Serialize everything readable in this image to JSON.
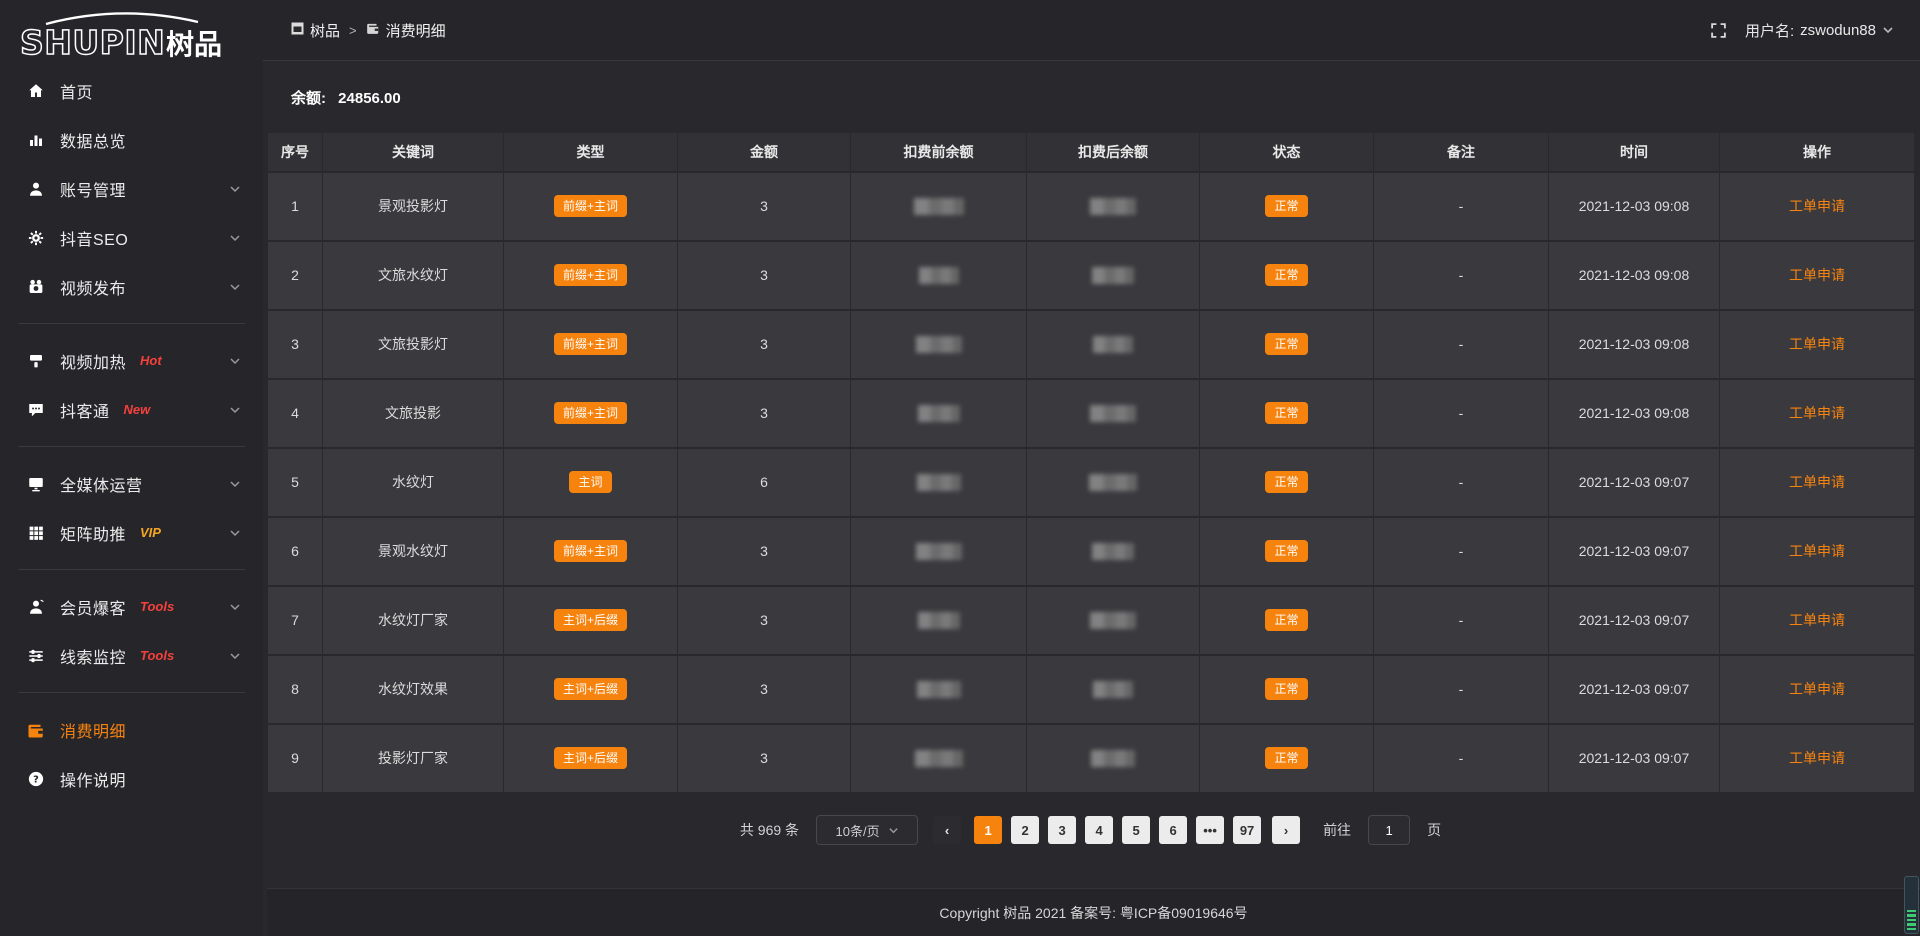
{
  "colors": {
    "accent": "#f7830f",
    "badge_red": "#f5403c",
    "badge_vip": "#f5a623",
    "link": "#f7830f"
  },
  "logo": {
    "text_en": "SHUPIN",
    "text_cn": "树品"
  },
  "header": {
    "breadcrumb": [
      {
        "label": "树品"
      },
      {
        "label": "消费明细"
      }
    ],
    "breadcrumb_separator": ">",
    "username_label": "用户名:",
    "username": "zswodun88"
  },
  "sidebar": {
    "items": [
      {
        "key": "home",
        "label": "首页",
        "icon": "home-icon"
      },
      {
        "key": "data-overview",
        "label": "数据总览",
        "icon": "bar-chart-icon"
      },
      {
        "key": "account-manage",
        "label": "账号管理",
        "icon": "user-icon",
        "chevron": true
      },
      {
        "key": "douyin-seo",
        "label": "抖音SEO",
        "icon": "gear-icon",
        "chevron": true
      },
      {
        "key": "video-publish",
        "label": "视频发布",
        "icon": "video-camera-icon",
        "chevron": true
      },
      {
        "divider": true
      },
      {
        "key": "video-heat",
        "label": "视频加热",
        "icon": "heat-brush-icon",
        "badge": "Hot",
        "badge_color": "red",
        "chevron": true
      },
      {
        "key": "doukertong",
        "label": "抖客通",
        "icon": "chat-bubble-icon",
        "badge": "New",
        "badge_color": "red",
        "chevron": true
      },
      {
        "divider": true
      },
      {
        "key": "media-operation",
        "label": "全媒体运营",
        "icon": "monitor-icon",
        "chevron": true
      },
      {
        "key": "matrix-boost",
        "label": "矩阵助推",
        "icon": "grid-icon",
        "badge": "VIP",
        "badge_color": "vip",
        "chevron": true
      },
      {
        "divider": true
      },
      {
        "key": "member-baoke",
        "label": "会员爆客",
        "icon": "member-icon",
        "badge": "Tools",
        "badge_color": "red",
        "chevron": true
      },
      {
        "key": "clue-monitor",
        "label": "线索监控",
        "icon": "sliders-icon",
        "badge": "Tools",
        "badge_color": "red",
        "chevron": true
      },
      {
        "divider": true
      },
      {
        "key": "consume-detail",
        "label": "消费明细",
        "icon": "wallet-icon",
        "active": true
      },
      {
        "key": "operation-guide",
        "label": "操作说明",
        "icon": "question-icon"
      }
    ]
  },
  "balance": {
    "label": "余额:",
    "value": "24856.00"
  },
  "table": {
    "columns": [
      "序号",
      "关键词",
      "类型",
      "金额",
      "扣费前余额",
      "扣费后余额",
      "状态",
      "备注",
      "时间",
      "操作"
    ],
    "rows": [
      {
        "index": "1",
        "keyword": "景观投影灯",
        "type": "前缀+主词",
        "amount": "3",
        "status": "正常",
        "remark": "-",
        "time": "2021-12-03 09:08",
        "action": "工单申请"
      },
      {
        "index": "2",
        "keyword": "文旅水纹灯",
        "type": "前缀+主词",
        "amount": "3",
        "status": "正常",
        "remark": "-",
        "time": "2021-12-03 09:08",
        "action": "工单申请"
      },
      {
        "index": "3",
        "keyword": "文旅投影灯",
        "type": "前缀+主词",
        "amount": "3",
        "status": "正常",
        "remark": "-",
        "time": "2021-12-03 09:08",
        "action": "工单申请"
      },
      {
        "index": "4",
        "keyword": "文旅投影",
        "type": "前缀+主词",
        "amount": "3",
        "status": "正常",
        "remark": "-",
        "time": "2021-12-03 09:08",
        "action": "工单申请"
      },
      {
        "index": "5",
        "keyword": "水纹灯",
        "type": "主词",
        "amount": "6",
        "status": "正常",
        "remark": "-",
        "time": "2021-12-03 09:07",
        "action": "工单申请"
      },
      {
        "index": "6",
        "keyword": "景观水纹灯",
        "type": "前缀+主词",
        "amount": "3",
        "status": "正常",
        "remark": "-",
        "time": "2021-12-03 09:07",
        "action": "工单申请"
      },
      {
        "index": "7",
        "keyword": "水纹灯厂家",
        "type": "主词+后缀",
        "amount": "3",
        "status": "正常",
        "remark": "-",
        "time": "2021-12-03 09:07",
        "action": "工单申请"
      },
      {
        "index": "8",
        "keyword": "水纹灯效果",
        "type": "主词+后缀",
        "amount": "3",
        "status": "正常",
        "remark": "-",
        "time": "2021-12-03 09:07",
        "action": "工单申请"
      },
      {
        "index": "9",
        "keyword": "投影灯厂家",
        "type": "主词+后缀",
        "amount": "3",
        "status": "正常",
        "remark": "-",
        "time": "2021-12-03 09:07",
        "action": "工单申请"
      }
    ],
    "blurred_columns_note": "扣费前余额 and 扣费后余额 values are pixel-blurred in the screenshot"
  },
  "pagination": {
    "total_label": "共 969 条",
    "page_size": "10条/页",
    "prev_label": "‹",
    "next_label": "›",
    "pages": [
      "1",
      "2",
      "3",
      "4",
      "5",
      "6",
      "•••",
      "97"
    ],
    "active_page": "1",
    "goto_label": "前往",
    "goto_value": "1",
    "goto_suffix": "页"
  },
  "footer": {
    "copyright": "Copyright 树品 2021 备案号: 粤ICP备09019646号"
  }
}
